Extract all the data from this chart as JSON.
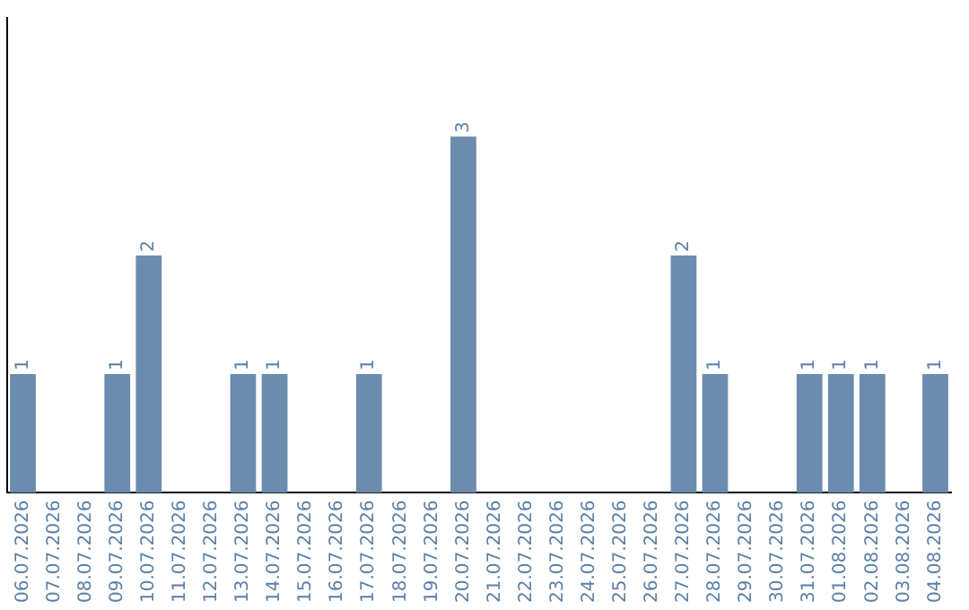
{
  "chart_data": {
    "type": "bar",
    "categories": [
      "06.07.2026",
      "07.07.2026",
      "08.07.2026",
      "09.07.2026",
      "10.07.2026",
      "11.07.2026",
      "12.07.2026",
      "13.07.2026",
      "14.07.2026",
      "15.07.2026",
      "16.07.2026",
      "17.07.2026",
      "18.07.2026",
      "19.07.2026",
      "20.07.2026",
      "21.07.2026",
      "22.07.2026",
      "23.07.2026",
      "24.07.2026",
      "25.07.2026",
      "26.07.2026",
      "27.07.2026",
      "28.07.2026",
      "29.07.2026",
      "30.07.2026",
      "31.07.2026",
      "01.08.2026",
      "02.08.2026",
      "03.08.2026",
      "04.08.2026"
    ],
    "values": [
      1,
      0,
      0,
      1,
      2,
      0,
      0,
      1,
      1,
      0,
      0,
      1,
      0,
      0,
      3,
      0,
      0,
      0,
      0,
      0,
      0,
      2,
      1,
      0,
      0,
      1,
      1,
      1,
      0,
      1
    ],
    "value_labels": [
      "1",
      null,
      null,
      "1",
      "2",
      null,
      null,
      "1",
      "1",
      null,
      null,
      "1",
      null,
      null,
      "3",
      null,
      null,
      null,
      null,
      null,
      null,
      "2",
      "1",
      null,
      null,
      "1",
      "1",
      "1",
      null,
      "1"
    ],
    "color": "#6b8cae",
    "grid": false,
    "legend": false,
    "tick_labels": "x"
  }
}
